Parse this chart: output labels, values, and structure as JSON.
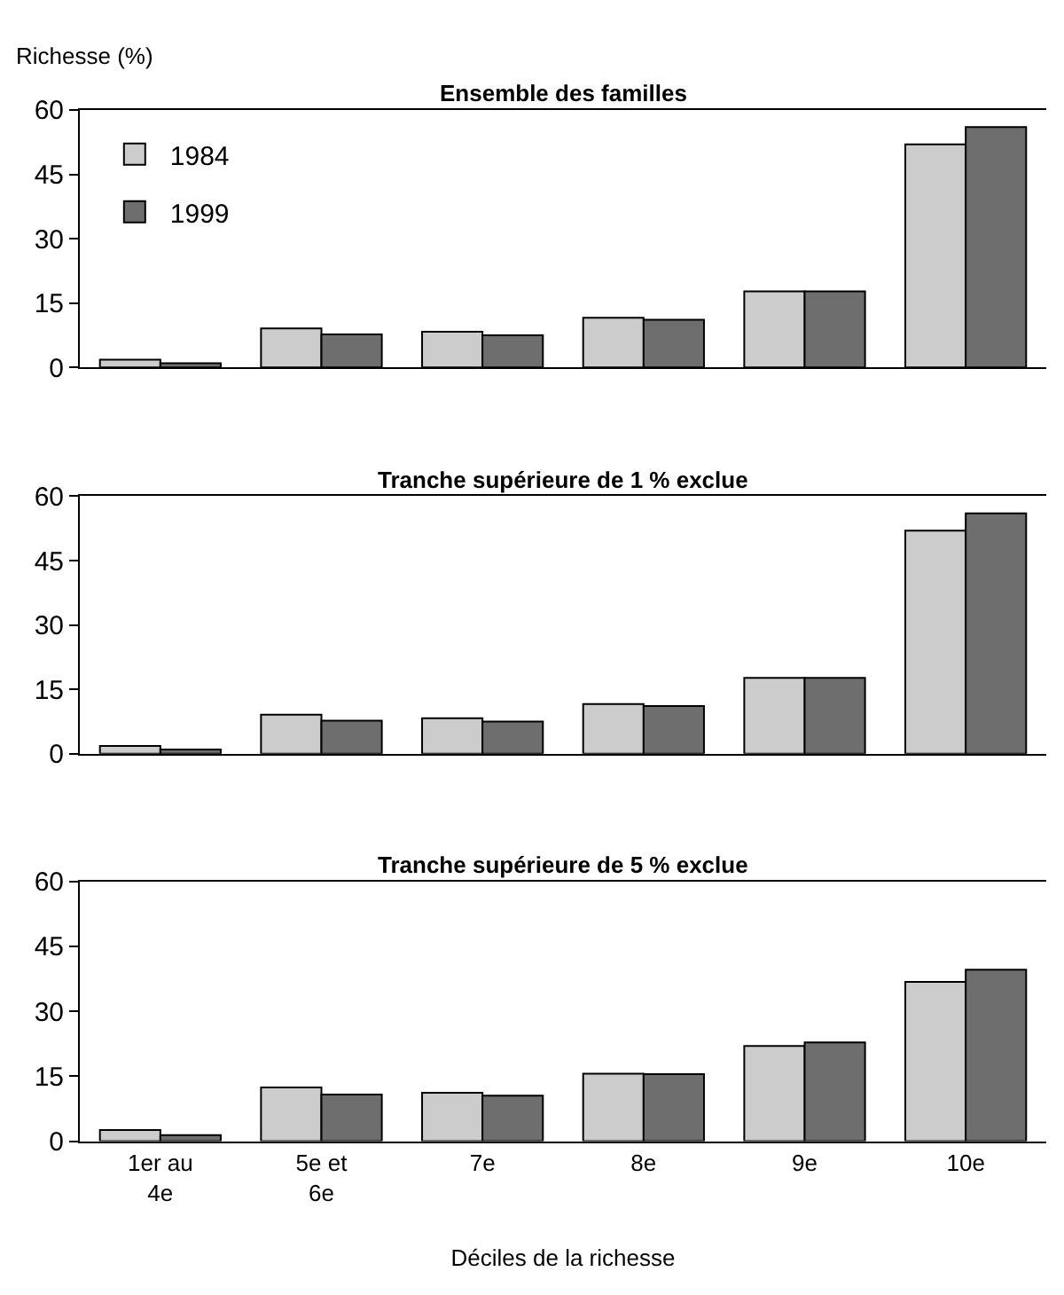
{
  "chart_data": [
    {
      "type": "bar",
      "title": "Ensemble des familles",
      "ylabel": "Richesse (%)",
      "categories": [
        null,
        null,
        null,
        null,
        null,
        null
      ],
      "series": [
        {
          "name": "1984",
          "color": "#cccccc",
          "values": [
            1.8,
            9.1,
            8.3,
            11.6,
            17.7,
            52.0
          ]
        },
        {
          "name": "1999",
          "color": "#6e6e6e",
          "values": [
            1.0,
            7.7,
            7.5,
            11.1,
            17.7,
            56.0
          ]
        }
      ],
      "ylim": [
        0,
        60
      ],
      "yticks": [
        0,
        15,
        30,
        45,
        60
      ],
      "legend": "top left",
      "tick_labels": "y"
    },
    {
      "type": "bar",
      "title": "Tranche supérieure de 1 % exclue",
      "categories": [
        null,
        null,
        null,
        null,
        null,
        null
      ],
      "series": [
        {
          "color": "#cccccc",
          "values": [
            1.8,
            9.1,
            8.3,
            11.6,
            17.7,
            52.0
          ]
        },
        {
          "color": "#6e6e6e",
          "values": [
            1.0,
            7.7,
            7.5,
            11.1,
            17.7,
            56.0
          ]
        }
      ],
      "ylim": [
        0,
        60
      ],
      "yticks": [
        0,
        15,
        30,
        45,
        60
      ],
      "tick_labels": "y"
    },
    {
      "type": "bar",
      "title": "Tranche supérieure de 5 % exclue",
      "xlabel": "Déciles de la richesse",
      "categories": [
        "1er au 4e",
        "5e et 6e",
        "7e",
        "8e",
        "9e",
        "10e"
      ],
      "series": [
        {
          "color": "#cccccc",
          "values": [
            2.6,
            12.4,
            11.2,
            15.6,
            22.0,
            36.8
          ]
        },
        {
          "color": "#6e6e6e",
          "values": [
            1.4,
            10.8,
            10.5,
            15.5,
            22.8,
            39.6
          ]
        }
      ],
      "ylim": [
        0,
        60
      ],
      "yticks": [
        0,
        15,
        30,
        45,
        60
      ]
    }
  ]
}
